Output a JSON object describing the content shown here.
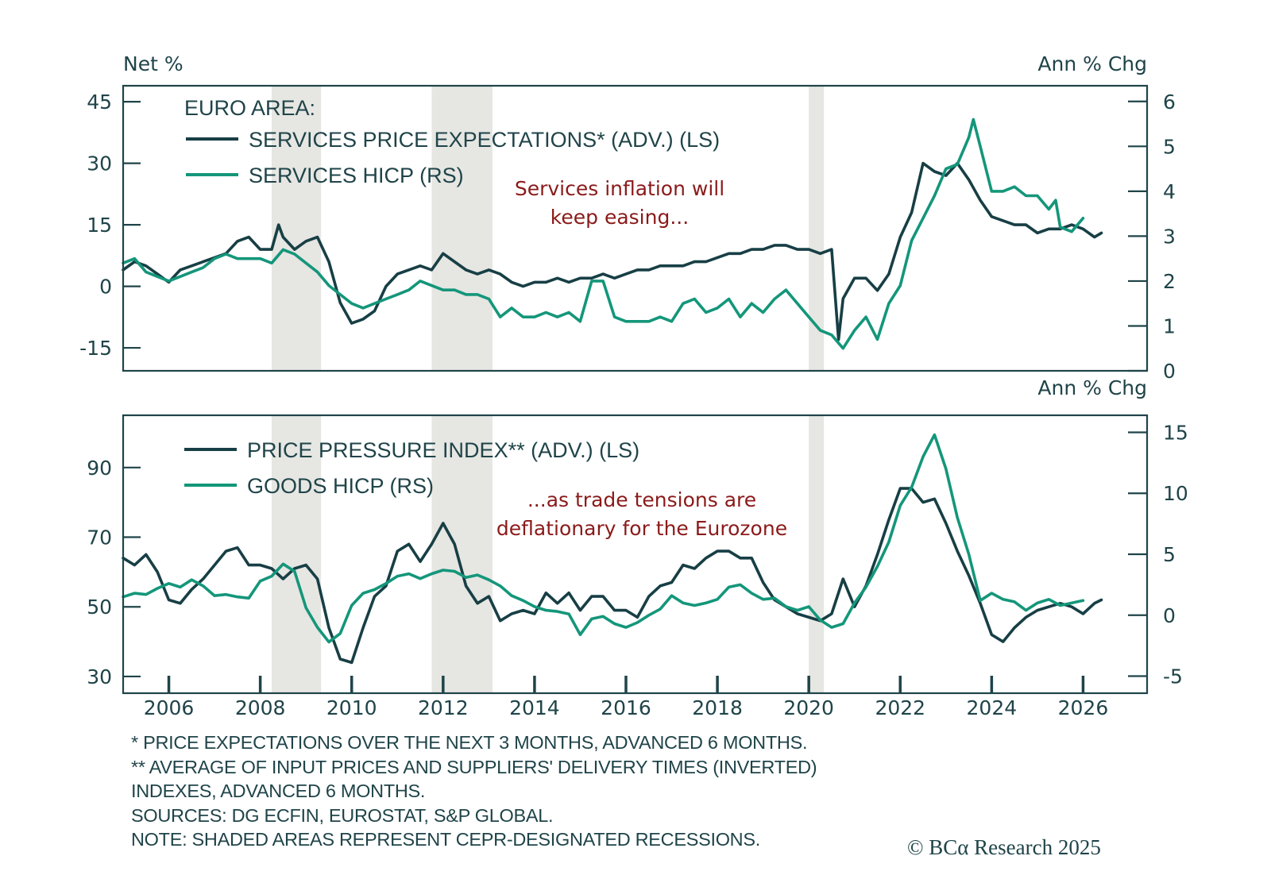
{
  "colors": {
    "dark_series": "#173f45",
    "green_series": "#14967a",
    "annotation": "#8b1a1a",
    "recession_shade": "#e6e6e2",
    "axis": "#1f4449"
  },
  "chart_data": [
    {
      "type": "line",
      "panel": "top",
      "title": "EURO AREA:",
      "left_axis_title": "Net %",
      "right_axis_title": "Ann % Chg",
      "xlim": [
        2005.0,
        2027.4
      ],
      "ylim_left": [
        -20.6,
        48.9
      ],
      "ylim_right": [
        0,
        6.35
      ],
      "left_ticks": [
        45,
        30,
        15,
        0,
        -15
      ],
      "right_ticks": [
        6,
        5,
        4,
        3,
        2,
        1,
        0
      ],
      "x_ticks": [
        2006,
        2008,
        2010,
        2012,
        2014,
        2016,
        2018,
        2020,
        2022,
        2024,
        2026
      ],
      "grid": false,
      "legend_position": "top-left",
      "recessions": [
        [
          2008.25,
          2009.33
        ],
        [
          2011.75,
          2013.08
        ],
        [
          2020.0,
          2020.33
        ]
      ],
      "annotation": [
        "Services inflation will",
        "keep easing..."
      ],
      "series": [
        {
          "name": "SERVICES PRICE EXPECTATIONS* (ADV.) (LS)",
          "axis": "left",
          "color_key": "dark_series",
          "x": [
            2005.0,
            2005.25,
            2005.5,
            2005.75,
            2006.0,
            2006.25,
            2006.5,
            2006.75,
            2007.0,
            2007.25,
            2007.5,
            2007.75,
            2008.0,
            2008.25,
            2008.4,
            2008.5,
            2008.75,
            2009.0,
            2009.25,
            2009.5,
            2009.75,
            2010.0,
            2010.25,
            2010.5,
            2010.75,
            2011.0,
            2011.25,
            2011.5,
            2011.75,
            2012.0,
            2012.25,
            2012.5,
            2012.75,
            2013.0,
            2013.25,
            2013.5,
            2013.75,
            2014.0,
            2014.25,
            2014.5,
            2014.75,
            2015.0,
            2015.25,
            2015.5,
            2015.75,
            2016.0,
            2016.25,
            2016.5,
            2016.75,
            2017.0,
            2017.25,
            2017.5,
            2017.75,
            2018.0,
            2018.25,
            2018.5,
            2018.75,
            2019.0,
            2019.25,
            2019.5,
            2019.75,
            2020.0,
            2020.25,
            2020.5,
            2020.65,
            2020.75,
            2021.0,
            2021.25,
            2021.5,
            2021.75,
            2022.0,
            2022.25,
            2022.5,
            2022.75,
            2023.0,
            2023.25,
            2023.5,
            2023.75,
            2024.0,
            2024.25,
            2024.5,
            2024.75,
            2025.0,
            2025.25,
            2025.5,
            2025.75,
            2026.0,
            2026.25,
            2026.4
          ],
          "values": [
            4,
            6,
            5,
            3,
            1,
            4,
            5,
            6,
            7,
            8,
            11,
            12,
            9,
            9,
            15,
            12,
            9,
            11,
            12,
            6,
            -4,
            -9,
            -8,
            -6,
            0,
            3,
            4,
            5,
            4,
            8,
            6,
            4,
            3,
            4,
            3,
            1,
            0,
            1,
            1,
            2,
            1,
            2,
            2,
            3,
            2,
            3,
            4,
            4,
            5,
            5,
            5,
            6,
            6,
            7,
            8,
            8,
            9,
            9,
            10,
            10,
            9,
            9,
            8,
            9,
            -13,
            -3,
            2,
            2,
            -1,
            3,
            12,
            18,
            30,
            28,
            27,
            30,
            26,
            21,
            17,
            16,
            15,
            15,
            13,
            14,
            14,
            15,
            14,
            12,
            13
          ]
        },
        {
          "name": "SERVICES HICP (RS)",
          "axis": "right",
          "color_key": "green_series",
          "x": [
            2005.0,
            2005.25,
            2005.5,
            2005.75,
            2006.0,
            2006.25,
            2006.5,
            2006.75,
            2007.0,
            2007.25,
            2007.5,
            2007.75,
            2008.0,
            2008.25,
            2008.5,
            2008.75,
            2009.0,
            2009.25,
            2009.5,
            2009.75,
            2010.0,
            2010.25,
            2010.5,
            2010.75,
            2011.0,
            2011.25,
            2011.5,
            2011.75,
            2012.0,
            2012.25,
            2012.5,
            2012.75,
            2013.0,
            2013.25,
            2013.5,
            2013.75,
            2014.0,
            2014.25,
            2014.5,
            2014.75,
            2015.0,
            2015.25,
            2015.5,
            2015.75,
            2016.0,
            2016.25,
            2016.5,
            2016.75,
            2017.0,
            2017.25,
            2017.5,
            2017.75,
            2018.0,
            2018.25,
            2018.5,
            2018.75,
            2019.0,
            2019.25,
            2019.5,
            2019.75,
            2020.0,
            2020.25,
            2020.5,
            2020.75,
            2021.0,
            2021.25,
            2021.5,
            2021.75,
            2022.0,
            2022.25,
            2022.5,
            2022.75,
            2023.0,
            2023.25,
            2023.5,
            2023.6,
            2023.75,
            2024.0,
            2024.25,
            2024.5,
            2024.75,
            2025.0,
            2025.25,
            2025.4,
            2025.5,
            2025.75,
            2026.0
          ],
          "values": [
            2.4,
            2.5,
            2.2,
            2.1,
            2.0,
            2.1,
            2.2,
            2.3,
            2.5,
            2.6,
            2.5,
            2.5,
            2.5,
            2.4,
            2.7,
            2.6,
            2.4,
            2.2,
            1.9,
            1.7,
            1.5,
            1.4,
            1.5,
            1.6,
            1.7,
            1.8,
            2.0,
            1.9,
            1.8,
            1.8,
            1.7,
            1.7,
            1.6,
            1.2,
            1.4,
            1.2,
            1.2,
            1.3,
            1.2,
            1.3,
            1.1,
            2.0,
            2.0,
            1.2,
            1.1,
            1.1,
            1.1,
            1.2,
            1.1,
            1.5,
            1.6,
            1.3,
            1.4,
            1.6,
            1.2,
            1.5,
            1.3,
            1.6,
            1.8,
            1.5,
            1.2,
            0.9,
            0.8,
            0.5,
            0.9,
            1.2,
            0.7,
            1.5,
            1.9,
            2.9,
            3.4,
            3.9,
            4.5,
            4.6,
            5.2,
            5.6,
            5.0,
            4.0,
            4.0,
            4.1,
            3.9,
            3.9,
            3.6,
            3.8,
            3.2,
            3.1,
            3.4
          ]
        }
      ]
    },
    {
      "type": "line",
      "panel": "bottom",
      "left_axis_title": "",
      "right_axis_title": "Ann % Chg",
      "xlim": [
        2005.0,
        2027.4
      ],
      "ylim_left": [
        25.2,
        105
      ],
      "ylim_right": [
        -6.4,
        16.4
      ],
      "left_ticks": [
        90,
        70,
        50,
        30
      ],
      "right_ticks": [
        15,
        10,
        5,
        0,
        -5
      ],
      "x_ticks": [
        2006,
        2008,
        2010,
        2012,
        2014,
        2016,
        2018,
        2020,
        2022,
        2024,
        2026
      ],
      "x_tick_labels": [
        "2006",
        "2008",
        "2010",
        "2012",
        "2014",
        "2016",
        "2018",
        "2020",
        "2022",
        "2024",
        "2026"
      ],
      "grid": false,
      "legend_position": "top-left",
      "recessions": [
        [
          2008.25,
          2009.33
        ],
        [
          2011.75,
          2013.08
        ],
        [
          2020.0,
          2020.33
        ]
      ],
      "annotation": [
        "...as trade tensions are",
        "deflationary for the Eurozone"
      ],
      "series": [
        {
          "name": "PRICE PRESSURE INDEX** (ADV.) (LS)",
          "axis": "left",
          "color_key": "dark_series",
          "x": [
            2005.0,
            2005.25,
            2005.5,
            2005.75,
            2006.0,
            2006.25,
            2006.5,
            2006.75,
            2007.0,
            2007.25,
            2007.5,
            2007.75,
            2008.0,
            2008.25,
            2008.5,
            2008.75,
            2009.0,
            2009.25,
            2009.5,
            2009.75,
            2010.0,
            2010.25,
            2010.5,
            2010.75,
            2011.0,
            2011.25,
            2011.5,
            2011.75,
            2012.0,
            2012.25,
            2012.5,
            2012.75,
            2013.0,
            2013.25,
            2013.5,
            2013.75,
            2014.0,
            2014.25,
            2014.5,
            2014.75,
            2015.0,
            2015.25,
            2015.5,
            2015.75,
            2016.0,
            2016.25,
            2016.5,
            2016.75,
            2017.0,
            2017.25,
            2017.5,
            2017.75,
            2018.0,
            2018.25,
            2018.5,
            2018.75,
            2019.0,
            2019.25,
            2019.5,
            2019.75,
            2020.0,
            2020.25,
            2020.5,
            2020.75,
            2021.0,
            2021.25,
            2021.5,
            2021.75,
            2022.0,
            2022.25,
            2022.5,
            2022.75,
            2023.0,
            2023.25,
            2023.5,
            2023.75,
            2024.0,
            2024.25,
            2024.5,
            2024.75,
            2025.0,
            2025.25,
            2025.5,
            2025.75,
            2026.0,
            2026.25,
            2026.4
          ],
          "values": [
            64,
            62,
            65,
            60,
            52,
            51,
            55,
            58,
            62,
            66,
            67,
            62,
            62,
            61,
            58,
            61,
            62,
            58,
            44,
            35,
            34,
            44,
            53,
            56,
            66,
            68,
            63,
            68,
            74,
            68,
            56,
            51,
            53,
            46,
            48,
            49,
            48,
            54,
            51,
            54,
            49,
            53,
            53,
            49,
            49,
            47,
            53,
            56,
            57,
            62,
            61,
            64,
            66,
            66,
            64,
            64,
            57,
            52,
            50,
            48,
            47,
            46,
            48,
            58,
            50,
            56,
            65,
            75,
            84,
            84,
            80,
            81,
            74,
            66,
            59,
            51,
            42,
            40,
            44,
            47,
            49,
            50,
            51,
            50,
            48,
            51,
            52
          ]
        },
        {
          "name": "GOODS HICP (RS)",
          "axis": "right",
          "color_key": "green_series",
          "x": [
            2005.0,
            2005.25,
            2005.5,
            2005.75,
            2006.0,
            2006.25,
            2006.5,
            2006.75,
            2007.0,
            2007.25,
            2007.5,
            2007.75,
            2008.0,
            2008.25,
            2008.5,
            2008.75,
            2009.0,
            2009.25,
            2009.5,
            2009.75,
            2010.0,
            2010.25,
            2010.5,
            2010.75,
            2011.0,
            2011.25,
            2011.5,
            2011.75,
            2012.0,
            2012.25,
            2012.5,
            2012.75,
            2013.0,
            2013.25,
            2013.5,
            2013.75,
            2014.0,
            2014.25,
            2014.5,
            2014.75,
            2015.0,
            2015.25,
            2015.5,
            2015.75,
            2016.0,
            2016.25,
            2016.5,
            2016.75,
            2017.0,
            2017.25,
            2017.5,
            2017.75,
            2018.0,
            2018.25,
            2018.5,
            2018.75,
            2019.0,
            2019.25,
            2019.5,
            2019.75,
            2020.0,
            2020.25,
            2020.5,
            2020.75,
            2021.0,
            2021.25,
            2021.5,
            2021.75,
            2022.0,
            2022.25,
            2022.5,
            2022.75,
            2023.0,
            2023.25,
            2023.5,
            2023.75,
            2024.0,
            2024.25,
            2024.5,
            2024.75,
            2025.0,
            2025.25,
            2025.5,
            2025.75,
            2026.0
          ],
          "values": [
            1.5,
            1.8,
            1.7,
            2.2,
            2.6,
            2.3,
            2.9,
            2.4,
            1.6,
            1.7,
            1.5,
            1.4,
            2.8,
            3.2,
            4.2,
            3.6,
            0.6,
            -1.0,
            -2.2,
            -1.5,
            0.8,
            1.8,
            2.1,
            2.6,
            3.2,
            3.4,
            3.0,
            3.4,
            3.7,
            3.6,
            3.1,
            3.3,
            2.9,
            2.4,
            1.6,
            1.2,
            0.7,
            0.4,
            0.3,
            0.1,
            -1.6,
            -0.3,
            -0.1,
            -0.7,
            -1.0,
            -0.6,
            0.0,
            0.5,
            1.6,
            1.0,
            0.8,
            1.0,
            1.3,
            2.3,
            2.5,
            1.8,
            1.3,
            1.4,
            0.7,
            0.4,
            0.7,
            -0.4,
            -1.0,
            -0.7,
            1.0,
            2.3,
            4.0,
            6.0,
            9.0,
            10.5,
            13.0,
            14.8,
            12.0,
            8.0,
            5.0,
            1.2,
            1.8,
            1.3,
            1.1,
            0.4,
            1.0,
            1.3,
            0.8,
            1.0,
            1.2
          ]
        }
      ]
    }
  ],
  "footnotes": [
    "* PRICE EXPECTATIONS OVER THE NEXT 3 MONTHS, ADVANCED 6 MONTHS.",
    "** AVERAGE OF INPUT PRICES AND SUPPLIERS' DELIVERY TIMES (INVERTED)",
    "INDEXES, ADVANCED 6 MONTHS.",
    "SOURCES: DG ECFIN, EUROSTAT, S&P GLOBAL.",
    "NOTE: SHADED AREAS REPRESENT CEPR-DESIGNATED RECESSIONS."
  ],
  "copyright": "© BCα Research 2025"
}
